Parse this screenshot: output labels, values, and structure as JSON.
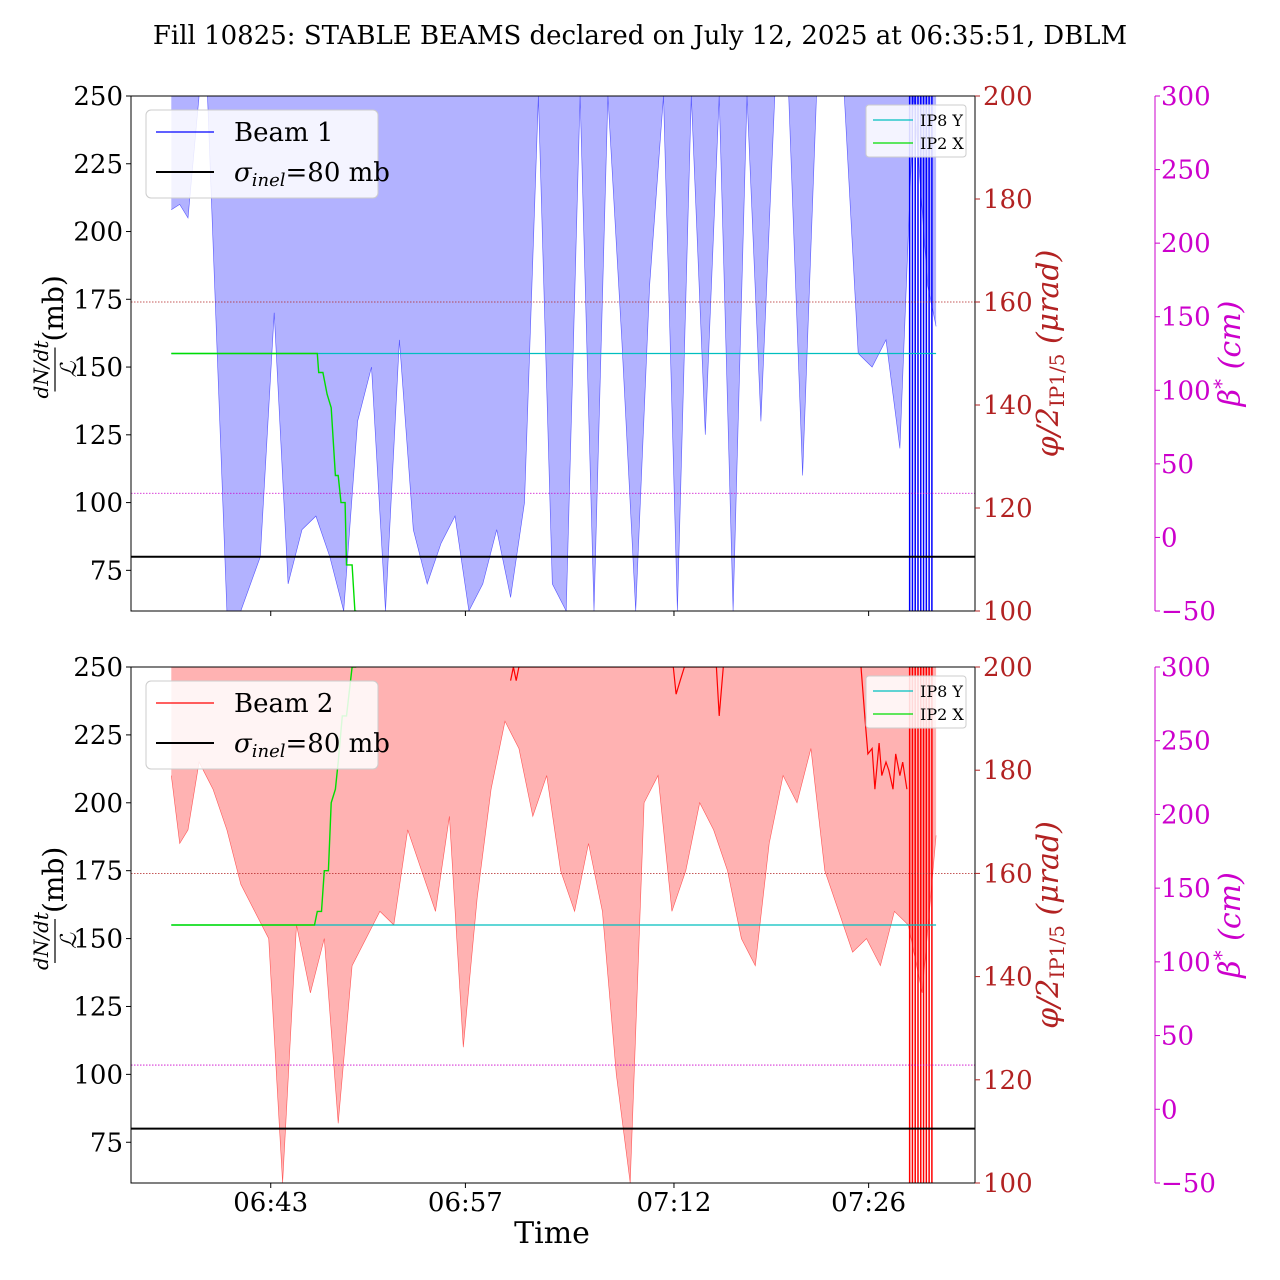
{
  "title": "Fill 10825: STABLE BEAMS declared on July 12, 2025 at 06:35:51, DBLM",
  "colors": {
    "beam1": "#0000ff",
    "beam1_fill": "#b2b2ff",
    "beam2": "#ff0000",
    "beam2_fill": "#ffb2b2",
    "ip8y": "#00bfbf",
    "ip2x": "#00dd00",
    "crossing_axis": "#b22222",
    "beta_axis": "#cc00cc",
    "sigma_line": "#000000"
  },
  "axes": {
    "xlabel": "Time",
    "ylabel_parts": {
      "num": "dN/dt",
      "den": "ℒ",
      "unit": "(mb)"
    },
    "y2label_parts": {
      "phi": "φ/2",
      "sub": "IP1/5",
      "unit": "(μrad)"
    },
    "y3label_parts": {
      "beta": "β",
      "sup": "*",
      "unit": "(cm)"
    },
    "xticks": [
      "06:43",
      "06:57",
      "07:12",
      "07:26"
    ],
    "yticks": [
      "75",
      "100",
      "125",
      "150",
      "175",
      "200",
      "225",
      "250"
    ],
    "y2ticks": [
      "100",
      "120",
      "140",
      "160",
      "180",
      "200"
    ],
    "y3ticks": [
      "−50",
      "0",
      "50",
      "100",
      "150",
      "200",
      "250",
      "300"
    ]
  },
  "chart_data": [
    {
      "type": "area",
      "panel": "Beam 1",
      "x_unit": "minutes since 06:35:51",
      "xlim": [
        -2.9,
        57.8
      ],
      "ylim": [
        60,
        250
      ],
      "y2lim": [
        100,
        200
      ],
      "y3lim": [
        -50,
        300
      ],
      "legend_main": [
        {
          "label": "Beam 1",
          "color": "#0000ff"
        },
        {
          "label_math": "σ",
          "label_sub": "inel",
          "label_rest": "=80 mb",
          "color": "#000000"
        }
      ],
      "legend_side": [
        {
          "label": "IP8 Y",
          "color": "#00bfbf"
        },
        {
          "label": "IP2 X",
          "color": "#00dd00"
        }
      ],
      "sigma_inel": 80,
      "fill_x": [
        0,
        0.6,
        1.2,
        2.0,
        2.6,
        4.0,
        5.0,
        6.4,
        7.4,
        8.4,
        9.4,
        10.4,
        11.4,
        12.4,
        13.4,
        14.4,
        15.4,
        16.4,
        17.4,
        18.4,
        19.4,
        20.4,
        21.4,
        22.4,
        23.4,
        24.4,
        25.4,
        26.4,
        27.4,
        28.4,
        29.4,
        30.4,
        31.4,
        32.4,
        33.4,
        34.4,
        35.4,
        36.4,
        37.4,
        38.4,
        39.4,
        40.4,
        41.4,
        42.4,
        43.4,
        44.4,
        45.4,
        46.4,
        47.4,
        48.4,
        49.4,
        50.4,
        51.4,
        52.4,
        53.4,
        54.4,
        55.0
      ],
      "fill_low": [
        208,
        210,
        205,
        250,
        250,
        60,
        60,
        80,
        170,
        70,
        90,
        95,
        80,
        60,
        130,
        150,
        60,
        160,
        90,
        70,
        85,
        95,
        60,
        70,
        90,
        65,
        100,
        250,
        70,
        60,
        250,
        60,
        250,
        160,
        60,
        180,
        250,
        60,
        250,
        125,
        250,
        60,
        250,
        130,
        250,
        250,
        110,
        250,
        250,
        250,
        155,
        150,
        160,
        120,
        250,
        180,
        165
      ],
      "fill_high": [
        250,
        250,
        250,
        250,
        250,
        250,
        250,
        250,
        250,
        250,
        250,
        250,
        250,
        250,
        250,
        250,
        250,
        250,
        250,
        250,
        250,
        250,
        250,
        250,
        250,
        250,
        250,
        250,
        250,
        250,
        250,
        250,
        250,
        250,
        250,
        250,
        250,
        250,
        250,
        250,
        250,
        250,
        250,
        250,
        250,
        250,
        250,
        250,
        250,
        250,
        250,
        250,
        250,
        250,
        250,
        250,
        250
      ],
      "ip8y_x": [
        0,
        55.0
      ],
      "ip8y_y": [
        155,
        155
      ],
      "ip2x_x": [
        0,
        10.5,
        10.6,
        10.9,
        11.2,
        11.5,
        11.8,
        12.0,
        12.2,
        12.5,
        12.6,
        12.9,
        13.0,
        13.2,
        13.3
      ],
      "ip2x_y": [
        155,
        155,
        148,
        148,
        140,
        135,
        110,
        110,
        100,
        100,
        77,
        77,
        77,
        60,
        60
      ],
      "y2_hline": 160,
      "y3_hline": 30,
      "end_bars_x": [
        53.1,
        53.3,
        53.5,
        53.7,
        53.9,
        54.1,
        54.3,
        54.5,
        54.7
      ]
    },
    {
      "type": "area",
      "panel": "Beam 2",
      "x_unit": "minutes since 06:35:51",
      "xlim": [
        -2.9,
        57.8
      ],
      "ylim": [
        60,
        250
      ],
      "y2lim": [
        100,
        200
      ],
      "y3lim": [
        -50,
        300
      ],
      "legend_main": [
        {
          "label": "Beam 2",
          "color": "#ff0000"
        },
        {
          "label_math": "σ",
          "label_sub": "inel",
          "label_rest": "=80 mb",
          "color": "#000000"
        }
      ],
      "legend_side": [
        {
          "label": "IP8 Y",
          "color": "#00bfbf"
        },
        {
          "label": "IP2 X",
          "color": "#00dd00"
        }
      ],
      "sigma_inel": 80,
      "fill_x": [
        0,
        0.6,
        1.2,
        2.0,
        3.0,
        4.0,
        5.0,
        6.0,
        7.0,
        8.0,
        9.0,
        10.0,
        11.0,
        12.0,
        13.0,
        14.0,
        15.0,
        16.0,
        17.0,
        18.0,
        19.0,
        20.0,
        21.0,
        22.0,
        23.0,
        24.0,
        25.0,
        26.0,
        27.0,
        28.0,
        29.0,
        30.0,
        31.0,
        32.0,
        33.0,
        34.0,
        35.0,
        36.0,
        37.0,
        38.0,
        39.0,
        40.0,
        41.0,
        42.0,
        43.0,
        44.0,
        45.0,
        46.0,
        47.0,
        48.0,
        49.0,
        50.0,
        51.0,
        52.0,
        53.0,
        54.0,
        55.0
      ],
      "fill_low": [
        210,
        185,
        190,
        215,
        205,
        190,
        170,
        160,
        150,
        60,
        155,
        130,
        150,
        82,
        140,
        150,
        160,
        155,
        190,
        175,
        160,
        195,
        110,
        165,
        205,
        230,
        220,
        195,
        210,
        175,
        160,
        185,
        160,
        100,
        60,
        200,
        210,
        160,
        175,
        200,
        190,
        175,
        150,
        140,
        185,
        210,
        200,
        220,
        175,
        160,
        145,
        150,
        140,
        160,
        155,
        130,
        188
      ],
      "fill_high": [
        250,
        250,
        250,
        250,
        250,
        250,
        250,
        250,
        250,
        250,
        250,
        250,
        250,
        250,
        250,
        250,
        250,
        250,
        250,
        250,
        250,
        250,
        250,
        250,
        250,
        250,
        250,
        250,
        250,
        250,
        250,
        250,
        250,
        250,
        250,
        250,
        250,
        250,
        250,
        250,
        250,
        250,
        250,
        250,
        250,
        250,
        250,
        250,
        250,
        250,
        250,
        250,
        250,
        250,
        250,
        250,
        250
      ],
      "beam2_line_x": [
        24.4,
        24.6,
        24.8,
        25.0,
        36.1,
        36.3,
        36.6,
        36.9,
        39.2,
        39.4,
        39.7
      ],
      "beam2_line_y": [
        245,
        250,
        245,
        250,
        250,
        240,
        245,
        250,
        250,
        232,
        250
      ],
      "beam2_tail_x": [
        49.6,
        49.9,
        50.1,
        50.4,
        50.6,
        50.9,
        51.1,
        51.4,
        51.6,
        51.9,
        52.1,
        52.4,
        52.6,
        52.9
      ],
      "beam2_tail_y": [
        250,
        230,
        218,
        220,
        205,
        222,
        210,
        215,
        212,
        205,
        218,
        210,
        215,
        205
      ],
      "ip8y_x": [
        0,
        55.0
      ],
      "ip8y_y": [
        155,
        155
      ],
      "ip2x_x": [
        0,
        10.3,
        10.5,
        10.8,
        11.0,
        11.3,
        11.5,
        11.8,
        12.0,
        12.3,
        12.6,
        13.0,
        13.3
      ],
      "ip2x_y": [
        155,
        155,
        160,
        160,
        175,
        175,
        200,
        205,
        215,
        232,
        232,
        250,
        250
      ],
      "y2_hline": 160,
      "y3_hline": 30,
      "end_bars_x": [
        53.1,
        53.3,
        53.5,
        53.7,
        53.9,
        54.1,
        54.3,
        54.5,
        54.7
      ]
    }
  ],
  "x_tick_values": [
    7.15,
    21.15,
    36.15,
    50.15
  ]
}
